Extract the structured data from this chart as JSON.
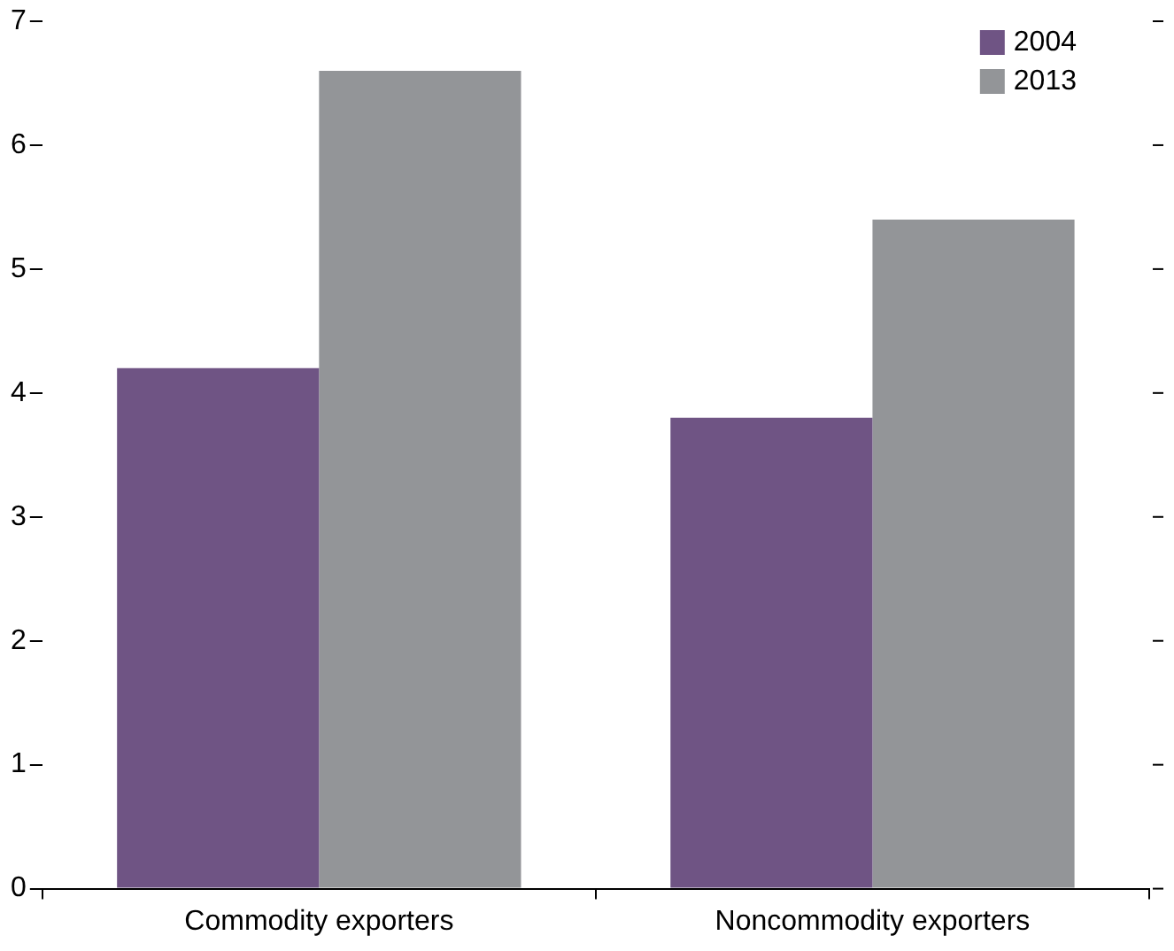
{
  "chart_data": {
    "type": "bar",
    "categories": [
      "Commodity exporters",
      "Noncommodity exporters"
    ],
    "series": [
      {
        "name": "2004",
        "color": "#6f5484",
        "values": [
          4.2,
          3.8
        ]
      },
      {
        "name": "2013",
        "color": "#939598",
        "values": [
          6.6,
          5.4
        ]
      }
    ],
    "ylim": [
      0,
      7
    ],
    "yticks": [
      0,
      1,
      2,
      3,
      4,
      5,
      6,
      7
    ],
    "grid": false,
    "legend": "top right"
  }
}
